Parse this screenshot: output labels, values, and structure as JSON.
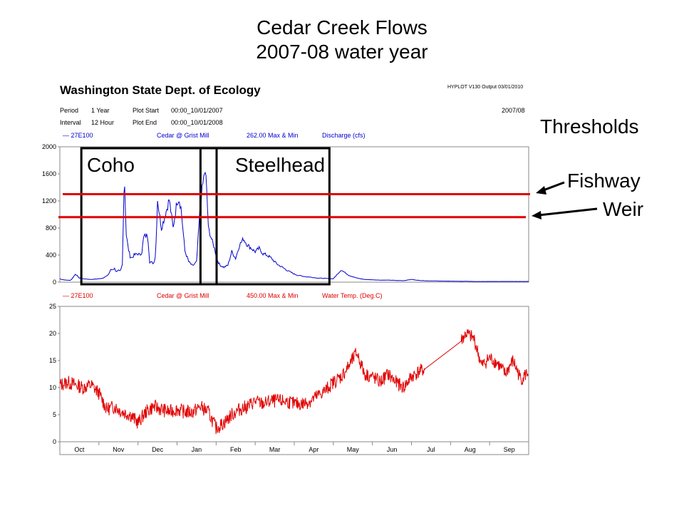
{
  "slide": {
    "title_line1": "Cedar Creek Flows",
    "title_line2": "2007-08 water year"
  },
  "hyplot": {
    "agency": "Washington State Dept. of Ecology",
    "version": "HYPLOT V130  Output 03/01/2010",
    "period_label": "Period",
    "period_value": "1 Year",
    "interval_label": "Interval",
    "interval_value": "12 Hour",
    "plot_start_label": "Plot Start",
    "plot_start_value": "00:00_10/01/2007",
    "plot_end_label": "Plot End",
    "plot_end_value": "00:00_10/01/2008",
    "water_year": "2007/08"
  },
  "annotations": {
    "thresholds": "Thresholds",
    "fishway": "Fishway",
    "weir": "Weir",
    "coho": "Coho",
    "steelhead": "Steelhead"
  },
  "colors": {
    "discharge": "#0000cc",
    "temperature": "#e00000",
    "threshold_lines": "#e00000",
    "species_boxes": "#000000"
  },
  "chart_data": [
    {
      "type": "line",
      "legend": {
        "station": "27E100",
        "site": "Cedar @ Grist Mill",
        "stat": "262.00  Max & Min",
        "param": "Discharge (cfs)"
      },
      "x_labels": [
        "Oct",
        "Nov",
        "Dec",
        "Jan",
        "Feb",
        "Mar",
        "Apr",
        "May",
        "Jun",
        "Jul",
        "Aug",
        "Sep"
      ],
      "ylim": [
        0,
        2000
      ],
      "yticks": [
        0,
        400,
        800,
        1200,
        1600,
        2000
      ],
      "series": [
        {
          "name": "Discharge (cfs)",
          "x": [
            0.0,
            0.05,
            0.1,
            0.15,
            0.2,
            0.25,
            0.3,
            0.4,
            0.5,
            0.6,
            0.7,
            0.8,
            0.9,
            1.0,
            1.1,
            1.2,
            1.25,
            1.3,
            1.4,
            1.45,
            1.5,
            1.55,
            1.6,
            1.65,
            1.7,
            1.75,
            1.8,
            1.85,
            1.9,
            2.0,
            2.05,
            2.1,
            2.15,
            2.2,
            2.25,
            2.3,
            2.4,
            2.45,
            2.5,
            2.55,
            2.6,
            2.7,
            2.8,
            2.9,
            3.0,
            3.05,
            3.1,
            3.2,
            3.3,
            3.4,
            3.5,
            3.6,
            3.7,
            3.75,
            3.8,
            3.85,
            3.9,
            3.95,
            4.0,
            4.05,
            4.1,
            4.2,
            4.3,
            4.4,
            4.5,
            4.6,
            4.7,
            4.8,
            4.9,
            5.0,
            5.1,
            5.2,
            5.3,
            5.4,
            5.5,
            5.6,
            5.7,
            5.8,
            5.9,
            6.0,
            6.1,
            6.2,
            6.3,
            6.4,
            6.6,
            6.8,
            7.0,
            7.2,
            7.4,
            7.6,
            7.8,
            8.0,
            8.2,
            8.4,
            8.6,
            8.8,
            9.0,
            9.2,
            9.4,
            9.6,
            9.8,
            10.0,
            10.2,
            10.4,
            10.6,
            10.8,
            11.0,
            11.2,
            11.4,
            11.6,
            11.8,
            12.0
          ],
          "y": [
            50,
            40,
            35,
            30,
            30,
            25,
            40,
            120,
            60,
            50,
            45,
            40,
            45,
            50,
            60,
            90,
            120,
            180,
            200,
            150,
            170,
            160,
            260,
            1620,
            700,
            500,
            380,
            360,
            400,
            420,
            400,
            450,
            680,
            680,
            700,
            300,
            280,
            400,
            1220,
            1000,
            800,
            1000,
            1220,
            800,
            1200,
            1240,
            1100,
            460,
            300,
            240,
            300,
            1180,
            1620,
            1500,
            800,
            700,
            600,
            520,
            400,
            300,
            250,
            220,
            250,
            450,
            350,
            550,
            640,
            550,
            500,
            450,
            500,
            420,
            400,
            360,
            300,
            250,
            220,
            180,
            150,
            120,
            100,
            90,
            80,
            75,
            60,
            55,
            50,
            180,
            100,
            60,
            40,
            35,
            30,
            30,
            25,
            22,
            40,
            25,
            20,
            18,
            15,
            15,
            12,
            12,
            10,
            10,
            10,
            10,
            10,
            10,
            10,
            10
          ]
        }
      ],
      "thresholds": [
        {
          "name": "Fishway",
          "value": 1300
        },
        {
          "name": "Weir",
          "value": 960
        }
      ],
      "periods": [
        {
          "name": "Coho",
          "start": 0.55,
          "end": 3.6
        },
        {
          "name": "Steelhead",
          "end": 6.9
        }
      ]
    },
    {
      "type": "line",
      "legend": {
        "station": "27E100",
        "site": "Cedar @ Grist Mill",
        "stat": "450.00  Max & Min",
        "param": "Water Temp. (Deg.C)"
      },
      "x_labels": [
        "Oct",
        "Nov",
        "Dec",
        "Jan",
        "Feb",
        "Mar",
        "Apr",
        "May",
        "Jun",
        "Jul",
        "Aug",
        "Sep"
      ],
      "ylim": [
        0,
        25
      ],
      "yticks": [
        0,
        5,
        10,
        15,
        20,
        25
      ],
      "series": [
        {
          "name": "Water Temp. (Deg.C)",
          "x": [
            0.0,
            0.2,
            0.4,
            0.6,
            0.8,
            1.0,
            1.2,
            1.4,
            1.6,
            1.8,
            2.0,
            2.2,
            2.4,
            2.6,
            2.8,
            3.0,
            3.2,
            3.4,
            3.6,
            3.8,
            4.0,
            4.2,
            4.4,
            4.6,
            4.8,
            5.0,
            5.2,
            5.4,
            5.6,
            5.8,
            6.0,
            6.2,
            6.4,
            6.6,
            6.8,
            7.0,
            7.2,
            7.4,
            7.6,
            7.8,
            8.0,
            8.2,
            8.4,
            8.6,
            8.8,
            9.0,
            9.2,
            9.4,
            9.6,
            9.8,
            10.0,
            10.2,
            10.4,
            10.6,
            10.8,
            11.0,
            11.2,
            11.4,
            11.6,
            11.8,
            12.0
          ],
          "y": [
            10.5,
            11.0,
            10.5,
            10.0,
            10.5,
            9.0,
            6.0,
            6.5,
            5.5,
            5.0,
            3.5,
            5.5,
            6.5,
            6.0,
            5.5,
            6.0,
            5.5,
            5.5,
            6.5,
            5.5,
            2.5,
            3.5,
            5.0,
            6.0,
            6.5,
            7.5,
            7.0,
            7.5,
            7.5,
            7.5,
            7.0,
            7.0,
            7.5,
            8.5,
            9.5,
            11.0,
            12.0,
            14.0,
            16.5,
            12.5,
            12.0,
            11.0,
            12.5,
            11.0,
            10.0,
            12.0,
            13.0,
            13.5,
            14.0,
            14.5,
            16.5,
            18.0,
            20.0,
            19.0,
            14.0,
            15.5,
            14.5,
            12.5,
            15.0,
            11.5,
            13.0
          ],
          "gap": [
            9.35,
            10.25
          ]
        }
      ]
    }
  ]
}
